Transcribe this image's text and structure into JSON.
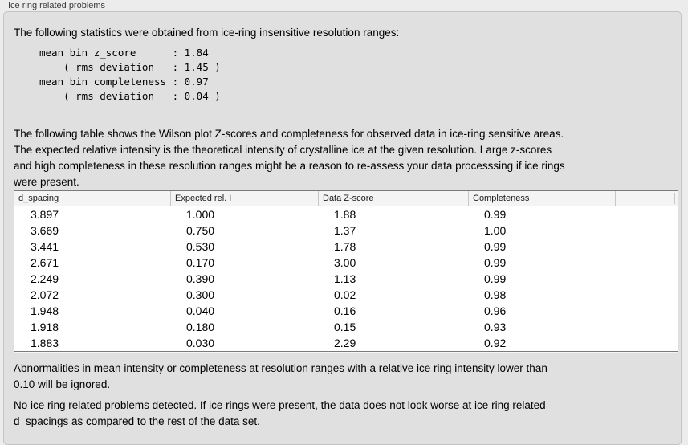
{
  "group": {
    "title": "Ice ring related problems"
  },
  "intro": {
    "text": "The following statistics were obtained from ice-ring insensitive resolution ranges:"
  },
  "stats_block": {
    "text": "mean bin z_score      : 1.84\n    ( rms deviation   : 1.45 )\nmean bin completeness : 0.97\n    ( rms deviation   : 0.04 )",
    "mean_bin_z_score": "1.84",
    "z_score_rms_deviation": "1.45",
    "mean_bin_completeness": "0.97",
    "completeness_rms_deviation": "0.04"
  },
  "description": {
    "text": "The following table shows the Wilson plot Z-scores and completeness for observed data in ice-ring sensitive areas.\nThe expected relative intensity is the theoretical intensity of crystalline ice at the given resolution. Large z-scores\nand high completeness in these resolution ranges might be a reason to re-assess your data processsing if ice rings\nwere present."
  },
  "table": {
    "columns": [
      "d_spacing",
      "Expected rel. I",
      "Data Z-score",
      "Completeness"
    ],
    "rows": [
      [
        "3.897",
        "1.000",
        "1.88",
        "0.99"
      ],
      [
        "3.669",
        "0.750",
        "1.37",
        "1.00"
      ],
      [
        "3.441",
        "0.530",
        "1.78",
        "0.99"
      ],
      [
        "2.671",
        "0.170",
        "3.00",
        "0.99"
      ],
      [
        "2.249",
        "0.390",
        "1.13",
        "0.99"
      ],
      [
        "2.072",
        "0.300",
        "0.02",
        "0.98"
      ],
      [
        "1.948",
        "0.040",
        "0.16",
        "0.96"
      ],
      [
        "1.918",
        "0.180",
        "0.15",
        "0.93"
      ],
      [
        "1.883",
        "0.030",
        "2.29",
        "0.92"
      ]
    ]
  },
  "footnote": {
    "text": "Abnormalities in mean intensity or completeness at resolution ranges with a relative ice ring intensity lower than\n0.10 will be ignored."
  },
  "conclusion": {
    "text": "No ice ring related problems detected. If ice rings were present, the data does not look worse at ice ring related\nd_spacings as compared to the rest of the data set."
  },
  "colors": {
    "page_background": "#ececec",
    "groupbox_background": "#e0e0e0",
    "table_header_background": "#f4f4f4",
    "table_border": "#7a7a7a"
  }
}
